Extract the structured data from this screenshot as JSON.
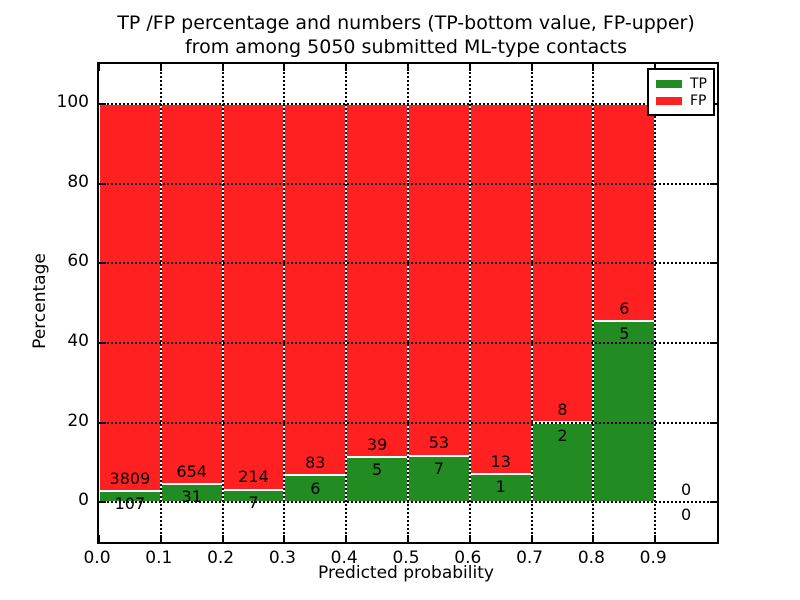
{
  "chart_data": {
    "type": "bar",
    "stacked": true,
    "title": "TP /FP percentage and numbers (TP-bottom value, FP-upper)",
    "subtitle": "from among 5050 submitted ML-type contacts",
    "xlabel": "Predicted probability",
    "ylabel": "Percentage",
    "xlim": [
      0.0,
      1.0
    ],
    "ylim": [
      -10,
      110
    ],
    "xtick_values": [
      0.0,
      0.1,
      0.2,
      0.3,
      0.4,
      0.5,
      0.6,
      0.7,
      0.8,
      0.9
    ],
    "xtick_labels": [
      "0.0",
      "0.1",
      "0.2",
      "0.3",
      "0.4",
      "0.5",
      "0.6",
      "0.7",
      "0.8",
      "0.9"
    ],
    "ytick_values": [
      0,
      20,
      40,
      60,
      80,
      100
    ],
    "ytick_labels": [
      "0",
      "20",
      "40",
      "60",
      "80",
      "100"
    ],
    "grid": true,
    "grid_style": "dotted",
    "legend": {
      "position": "upper right",
      "entries": [
        {
          "label": "TP",
          "color": "#228b22"
        },
        {
          "label": "FP",
          "color": "#ff2121"
        }
      ]
    },
    "annotation_rule": "Each 0.1-wide bin is stacked to 100%: TP (green) on bottom, FP (red) on top; numbers are raw counts, FP count printed above the TP/FP boundary and TP count below it.",
    "bins": [
      {
        "range": [
          0.0,
          0.1
        ],
        "tp_count": 107,
        "fp_count": 3809,
        "tp_pct": 2.73,
        "fp_pct": 97.27
      },
      {
        "range": [
          0.1,
          0.2
        ],
        "tp_count": 31,
        "fp_count": 654,
        "tp_pct": 4.53,
        "fp_pct": 95.47
      },
      {
        "range": [
          0.2,
          0.3
        ],
        "tp_count": 7,
        "fp_count": 214,
        "tp_pct": 3.17,
        "fp_pct": 96.83
      },
      {
        "range": [
          0.3,
          0.4
        ],
        "tp_count": 6,
        "fp_count": 83,
        "tp_pct": 6.74,
        "fp_pct": 93.26
      },
      {
        "range": [
          0.4,
          0.5
        ],
        "tp_count": 5,
        "fp_count": 39,
        "tp_pct": 11.36,
        "fp_pct": 88.64
      },
      {
        "range": [
          0.5,
          0.6
        ],
        "tp_count": 7,
        "fp_count": 53,
        "tp_pct": 11.67,
        "fp_pct": 88.33
      },
      {
        "range": [
          0.6,
          0.7
        ],
        "tp_count": 1,
        "fp_count": 13,
        "tp_pct": 7.14,
        "fp_pct": 92.86
      },
      {
        "range": [
          0.7,
          0.8
        ],
        "tp_count": 2,
        "fp_count": 8,
        "tp_pct": 20.0,
        "fp_pct": 80.0
      },
      {
        "range": [
          0.8,
          0.9
        ],
        "tp_count": 5,
        "fp_count": 6,
        "tp_pct": 45.45,
        "fp_pct": 54.55
      },
      {
        "range": [
          0.9,
          1.0
        ],
        "tp_count": 0,
        "fp_count": 0,
        "tp_pct": 0,
        "fp_pct": 0
      }
    ],
    "colors": {
      "tp": "#228b22",
      "fp": "#ff2121",
      "bar_edge": "#ffffff",
      "grid": "#000000",
      "text": "#000000",
      "background": "#ffffff"
    }
  }
}
